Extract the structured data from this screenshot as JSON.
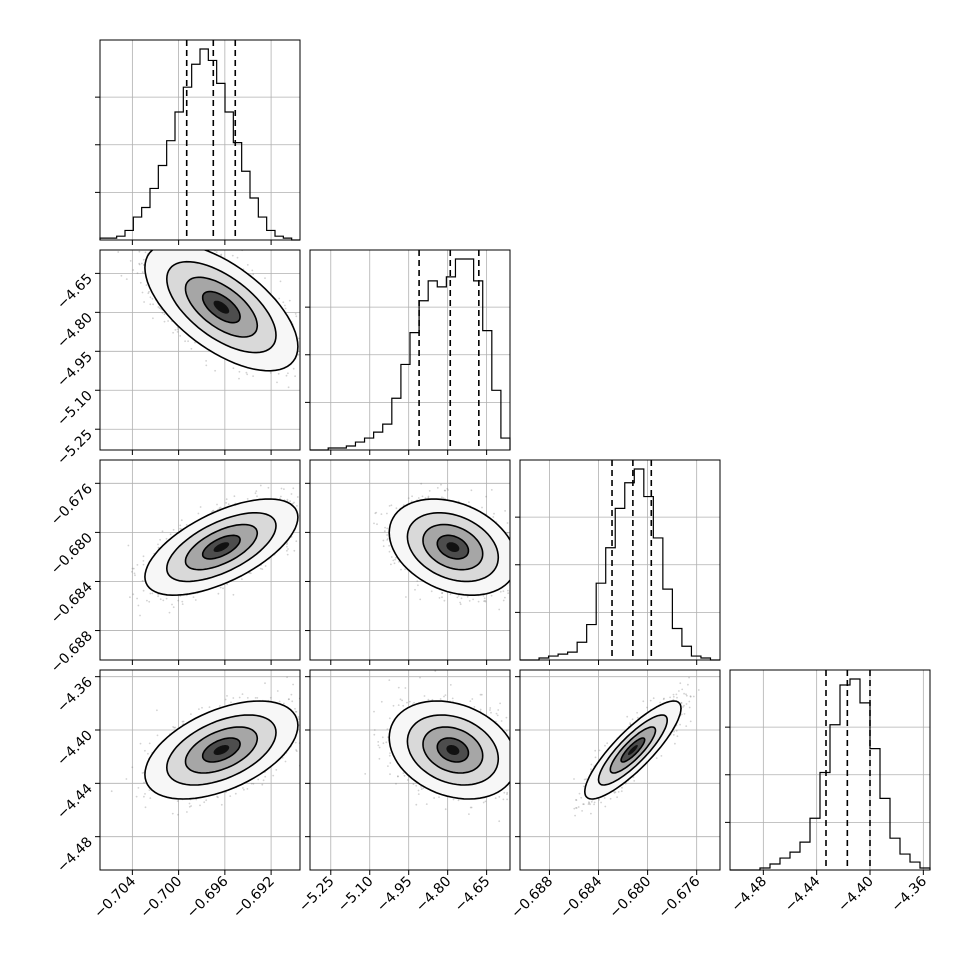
{
  "chart_data": {
    "type": "corner",
    "panels_per_side": 4,
    "grid": true,
    "parameters": [
      {
        "range": [
          -0.7068,
          -0.6895
        ],
        "ticks": [
          -0.704,
          -0.7,
          -0.696,
          -0.692
        ],
        "tick_labels": [
          "−0.704",
          "−0.700",
          "−0.696",
          "−0.692"
        ],
        "hist_bins": [
          0.01,
          0.01,
          0.02,
          0.05,
          0.12,
          0.17,
          0.27,
          0.39,
          0.52,
          0.67,
          0.8,
          0.92,
          1.0,
          0.94,
          0.82,
          0.67,
          0.51,
          0.36,
          0.22,
          0.12,
          0.05,
          0.02,
          0.01,
          0.0
        ],
        "quantiles": [
          -0.6993,
          -0.697,
          -0.6951
        ],
        "center": -0.6963,
        "spread": 0.0027
      },
      {
        "range": [
          -5.33,
          -4.56
        ],
        "ticks": [
          -5.25,
          -5.1,
          -4.95,
          -4.8,
          -4.65
        ],
        "tick_labels": [
          "−5.25",
          "−5.10",
          "−4.95",
          "−4.80",
          "−4.65"
        ],
        "hist_bins": [
          0.0,
          0.0,
          0.01,
          0.01,
          0.02,
          0.04,
          0.06,
          0.09,
          0.13,
          0.26,
          0.43,
          0.59,
          0.75,
          0.85,
          0.82,
          0.87,
          0.96,
          0.96,
          0.85,
          0.6,
          0.3,
          0.06
        ],
        "quantiles": [
          -4.91,
          -4.79,
          -4.68
        ],
        "center": -4.78,
        "spread": 0.1
      },
      {
        "range": [
          -0.6904,
          -0.6741
        ],
        "ticks": [
          -0.688,
          -0.684,
          -0.68,
          -0.676
        ],
        "tick_labels": [
          "−0.688",
          "−0.684",
          "−0.680",
          "−0.676"
        ],
        "hist_bins": [
          0.0,
          0.0,
          0.01,
          0.02,
          0.03,
          0.04,
          0.09,
          0.18,
          0.39,
          0.57,
          0.77,
          0.9,
          0.97,
          0.83,
          0.62,
          0.36,
          0.16,
          0.07,
          0.02,
          0.01,
          0.0
        ],
        "quantiles": [
          -0.6829,
          -0.6812,
          -0.6797
        ],
        "center": -0.6812,
        "spread": 0.0016
      },
      {
        "range": [
          -4.505,
          -4.355
        ],
        "ticks": [
          -4.48,
          -4.44,
          -4.4,
          -4.36
        ],
        "tick_labels": [
          "−4.48",
          "−4.44",
          "−4.40",
          "−4.36"
        ],
        "hist_bins": [
          0.0,
          0.0,
          0.0,
          0.01,
          0.03,
          0.06,
          0.09,
          0.14,
          0.26,
          0.49,
          0.73,
          0.93,
          0.96,
          0.84,
          0.61,
          0.36,
          0.16,
          0.08,
          0.04,
          0.01
        ],
        "quantiles": [
          -4.433,
          -4.417,
          -4.4
        ],
        "center": -4.415,
        "spread": 0.015
      }
    ],
    "pairs": [
      {
        "x": 0,
        "y": 1,
        "rho": -0.62
      },
      {
        "x": 0,
        "y": 2,
        "rho": 0.62
      },
      {
        "x": 1,
        "y": 2,
        "rho": -0.3
      },
      {
        "x": 0,
        "y": 3,
        "rho": 0.5
      },
      {
        "x": 1,
        "y": 3,
        "rho": -0.25
      },
      {
        "x": 2,
        "y": 3,
        "rho": 0.85
      }
    ]
  }
}
